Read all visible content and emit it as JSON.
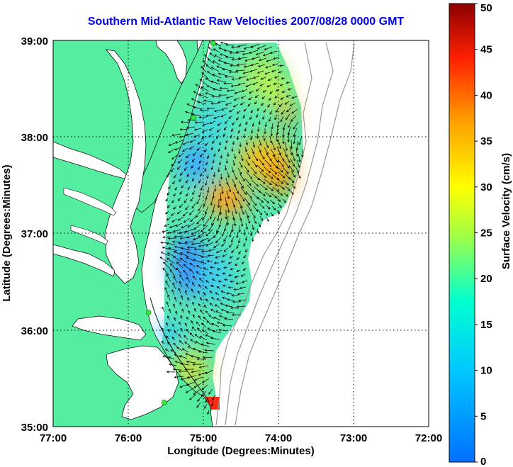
{
  "title": "Southern Mid-Atlantic Raw Velocities 2007/08/28 0000 GMT",
  "xaxis": {
    "label": "Longitude (Degrees:Minutes)",
    "ticks": [
      "77:00",
      "76:00",
      "75:00",
      "74:00",
      "73:00",
      "72:00"
    ]
  },
  "yaxis": {
    "label": "Latitude (Degrees:Minutes)",
    "ticks": [
      "39:00",
      "38:00",
      "37:00",
      "36:00",
      "35:00"
    ]
  },
  "colorbar": {
    "label": "Surface Velocity (cm/s)",
    "ticks": [
      "50",
      "45",
      "40",
      "35",
      "30",
      "25",
      "20",
      "15",
      "10",
      "5",
      "0"
    ],
    "range": [
      0,
      50
    ]
  },
  "colors": {
    "land": "#55eea0",
    "water": "#ffffff",
    "title": "#0000ee",
    "station": "#33ee33"
  },
  "chart_data": {
    "type": "heatmap",
    "title": "Southern Mid-Atlantic Raw Velocities 2007/08/28 0000 GMT",
    "xlabel": "Longitude (Degrees:Minutes)",
    "ylabel": "Latitude (Degrees:Minutes)",
    "xlim": [
      -77,
      -72
    ],
    "ylim": [
      35,
      39
    ],
    "grid": true,
    "colorbar_label": "Surface Velocity (cm/s)",
    "colorbar_range": [
      0,
      50
    ],
    "speed_samples": [
      {
        "lon": -74.9,
        "lat": 38.8,
        "speed": 18
      },
      {
        "lon": -74.4,
        "lat": 38.7,
        "speed": 22
      },
      {
        "lon": -74.0,
        "lat": 38.3,
        "speed": 30
      },
      {
        "lon": -75.0,
        "lat": 37.8,
        "speed": 7
      },
      {
        "lon": -74.5,
        "lat": 37.7,
        "speed": 27
      },
      {
        "lon": -74.1,
        "lat": 37.6,
        "speed": 30
      },
      {
        "lon": -74.8,
        "lat": 37.3,
        "speed": 30
      },
      {
        "lon": -75.2,
        "lat": 36.6,
        "speed": 7
      },
      {
        "lon": -74.6,
        "lat": 36.6,
        "speed": 14
      },
      {
        "lon": -75.1,
        "lat": 36.0,
        "speed": 13
      },
      {
        "lon": -75.0,
        "lat": 35.5,
        "speed": 22
      },
      {
        "lon": -74.9,
        "lat": 35.2,
        "speed": 45
      }
    ],
    "stations": [
      {
        "lon": -74.87,
        "lat": 38.97
      },
      {
        "lon": -75.13,
        "lat": 38.2
      },
      {
        "lon": -75.73,
        "lat": 36.18
      },
      {
        "lon": -75.52,
        "lat": 35.25
      }
    ]
  }
}
